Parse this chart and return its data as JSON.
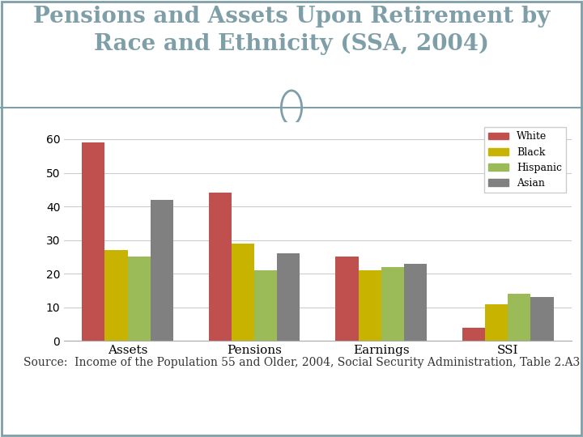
{
  "title_line1": "Pensions and Assets Upon Retirement by",
  "title_line2": "Race and Ethnicity (SSA, 2004)",
  "categories": [
    "Assets",
    "Pensions",
    "Earnings",
    "SSI"
  ],
  "series": {
    "White": [
      59,
      44,
      25,
      4
    ],
    "Black": [
      27,
      29,
      21,
      11
    ],
    "Hispanic": [
      25,
      21,
      22,
      14
    ],
    "Asian": [
      42,
      26,
      23,
      13
    ]
  },
  "colors": {
    "White": "#C0504D",
    "Black": "#C8B400",
    "Hispanic": "#9BBB59",
    "Asian": "#808080"
  },
  "ylim": [
    0,
    65
  ],
  "yticks": [
    0,
    10,
    20,
    30,
    40,
    50,
    60
  ],
  "source_text": "Source:  Income of the Population 55 and Older, 2004, Social Security Administration, Table 2.A3",
  "bg_color": "#ffffff",
  "title_color": "#7F9FA8",
  "footer_bg": "#7F9FA8",
  "border_color": "#7F9FA8",
  "title_fontsize": 20,
  "source_fontsize": 10,
  "bar_width": 0.18
}
